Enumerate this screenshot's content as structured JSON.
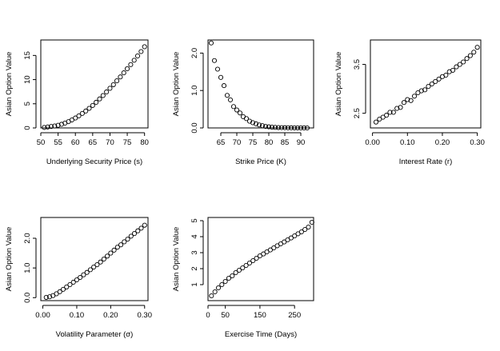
{
  "chart_data": [
    {
      "type": "scatter",
      "title": "",
      "xlabel": "Underlying Security Price (s)",
      "ylabel": "Asian Option Value",
      "xlim": [
        50,
        81
      ],
      "ylim": [
        0,
        18.2
      ],
      "xticks": [
        50,
        55,
        60,
        65,
        70,
        75,
        80
      ],
      "xtick_labels": [
        "50",
        "55",
        "60",
        "65",
        "70",
        "75",
        "80"
      ],
      "yticks": [
        0,
        5,
        10,
        15
      ],
      "ytick_labels": [
        "0",
        "5",
        "10",
        "15"
      ],
      "x": [
        51,
        52,
        53,
        54,
        55,
        56,
        57,
        58,
        59,
        60,
        61,
        62,
        63,
        64,
        65,
        66,
        67,
        68,
        69,
        70,
        71,
        72,
        73,
        74,
        75,
        76,
        77,
        78,
        79,
        80
      ],
      "y": [
        0.1,
        0.2,
        0.3,
        0.4,
        0.55,
        0.75,
        1.0,
        1.3,
        1.65,
        2.05,
        2.5,
        3.0,
        3.5,
        4.05,
        4.65,
        5.3,
        6.0,
        6.7,
        7.45,
        8.2,
        8.95,
        9.75,
        10.55,
        11.4,
        12.25,
        13.1,
        14.0,
        14.9,
        15.8,
        16.8
      ],
      "grid": false
    },
    {
      "type": "scatter",
      "title": "",
      "xlabel": "Strike Price (K)",
      "ylabel": "Asian Option Value",
      "xlim": [
        61,
        94
      ],
      "ylim": [
        0,
        2.35
      ],
      "xticks": [
        65,
        70,
        75,
        80,
        85,
        90
      ],
      "xtick_labels": [
        "65",
        "70",
        "75",
        "80",
        "85",
        "90"
      ],
      "yticks": [
        0,
        1,
        2
      ],
      "ytick_labels": [
        "0.0",
        "1.0",
        "2.0"
      ],
      "x": [
        62,
        63,
        64,
        65,
        66,
        67,
        68,
        69,
        70,
        71,
        72,
        73,
        74,
        75,
        76,
        77,
        78,
        79,
        80,
        81,
        82,
        83,
        84,
        85,
        86,
        87,
        88,
        89,
        90,
        91,
        92
      ],
      "y": [
        2.27,
        1.8,
        1.57,
        1.35,
        1.13,
        0.87,
        0.75,
        0.57,
        0.48,
        0.4,
        0.3,
        0.25,
        0.18,
        0.14,
        0.11,
        0.08,
        0.06,
        0.04,
        0.03,
        0.02,
        0.015,
        0.01,
        0.008,
        0.006,
        0.004,
        0.003,
        0.002,
        0.002,
        0.001,
        0.001,
        0.0
      ],
      "grid": false
    },
    {
      "type": "scatter",
      "title": "",
      "xlabel": "Interest Rate (r)",
      "ylabel": "Asian Option Value",
      "xlim": [
        -0.006,
        0.31
      ],
      "ylim": [
        2.2,
        4.0
      ],
      "xticks": [
        0.0,
        0.1,
        0.2,
        0.3
      ],
      "xtick_labels": [
        "0.00",
        "0.10",
        "0.20",
        "0.30"
      ],
      "yticks": [
        2.5,
        3.5
      ],
      "ytick_labels": [
        "2.5",
        "3.5"
      ],
      "x": [
        0.01,
        0.02,
        0.03,
        0.04,
        0.05,
        0.06,
        0.07,
        0.08,
        0.09,
        0.1,
        0.11,
        0.12,
        0.13,
        0.14,
        0.15,
        0.16,
        0.17,
        0.18,
        0.19,
        0.2,
        0.21,
        0.22,
        0.23,
        0.24,
        0.25,
        0.26,
        0.27,
        0.28,
        0.29,
        0.3
      ],
      "y": [
        2.32,
        2.38,
        2.42,
        2.46,
        2.52,
        2.52,
        2.6,
        2.62,
        2.72,
        2.78,
        2.76,
        2.85,
        2.92,
        2.96,
        2.98,
        3.05,
        3.1,
        3.15,
        3.2,
        3.25,
        3.28,
        3.35,
        3.38,
        3.45,
        3.5,
        3.55,
        3.62,
        3.68,
        3.75,
        3.85
      ],
      "grid": false
    },
    {
      "type": "scatter",
      "title": "",
      "xlabel": "Volatility Parameter (σ)",
      "ylabel": "Asian Option Value",
      "xlim": [
        -0.006,
        0.31
      ],
      "ylim": [
        -0.1,
        2.7
      ],
      "xticks": [
        0.0,
        0.1,
        0.2,
        0.3
      ],
      "xtick_labels": [
        "0.00",
        "0.10",
        "0.20",
        "0.30"
      ],
      "yticks": [
        0,
        1,
        2
      ],
      "ytick_labels": [
        "0.0",
        "1.0",
        "2.0"
      ],
      "x": [
        0.01,
        0.02,
        0.03,
        0.04,
        0.05,
        0.06,
        0.07,
        0.08,
        0.09,
        0.1,
        0.11,
        0.12,
        0.13,
        0.14,
        0.15,
        0.16,
        0.17,
        0.18,
        0.19,
        0.2,
        0.21,
        0.22,
        0.23,
        0.24,
        0.25,
        0.26,
        0.27,
        0.28,
        0.29,
        0.3
      ],
      "y": [
        0.01,
        0.03,
        0.07,
        0.13,
        0.2,
        0.28,
        0.36,
        0.44,
        0.52,
        0.6,
        0.68,
        0.77,
        0.85,
        0.94,
        1.03,
        1.11,
        1.2,
        1.3,
        1.4,
        1.5,
        1.6,
        1.7,
        1.78,
        1.88,
        1.97,
        2.07,
        2.16,
        2.25,
        2.34,
        2.44
      ],
      "grid": false
    },
    {
      "type": "scatter",
      "title": "",
      "xlabel": "Exercise Time (Days)",
      "ylabel": "Asian Option Value",
      "xlim": [
        0,
        305
      ],
      "ylim": [
        0,
        5.2
      ],
      "xticks": [
        0,
        50,
        150,
        250
      ],
      "xtick_labels": [
        "0",
        "50",
        "150",
        "250"
      ],
      "yticks": [
        1,
        2,
        3,
        4,
        5
      ],
      "ytick_labels": [
        "1",
        "2",
        "3",
        "4",
        "5"
      ],
      "x": [
        10,
        20,
        30,
        40,
        50,
        60,
        70,
        80,
        90,
        100,
        110,
        120,
        130,
        140,
        150,
        160,
        170,
        180,
        190,
        200,
        210,
        220,
        230,
        240,
        250,
        260,
        270,
        280,
        290,
        300
      ],
      "y": [
        0.3,
        0.55,
        0.8,
        1.0,
        1.2,
        1.4,
        1.55,
        1.75,
        1.9,
        2.05,
        2.2,
        2.35,
        2.5,
        2.65,
        2.8,
        2.92,
        3.05,
        3.17,
        3.3,
        3.43,
        3.55,
        3.67,
        3.8,
        3.92,
        4.05,
        4.18,
        4.3,
        4.45,
        4.6,
        4.9
      ],
      "grid": false
    }
  ]
}
